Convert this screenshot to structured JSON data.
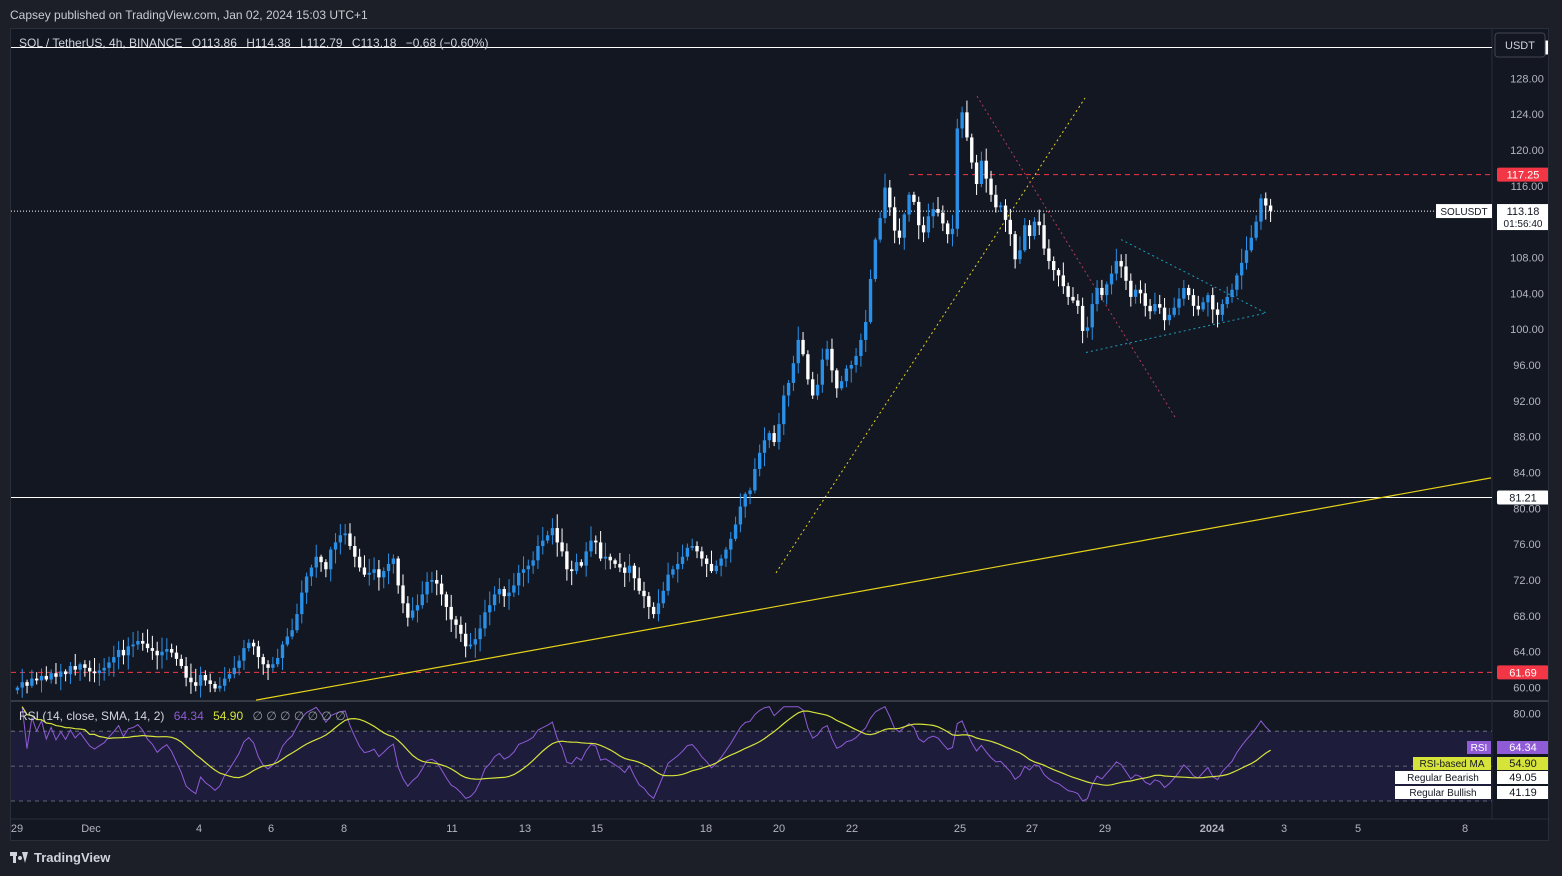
{
  "publish_line": "Capsey published on TradingView.com, Jan 02, 2024 15:03 UTC+1",
  "footer_brand": "TradingView",
  "currency_label": "USDT",
  "legend": {
    "symbol": "SOL / TetherUS, 4h, BINANCE",
    "o_label": "O",
    "o": "113.86",
    "h_label": "H",
    "h": "114.38",
    "l_label": "L",
    "l": "112.79",
    "c_label": "C",
    "c": "113.18",
    "change": "−0.68 (−0.60%)"
  },
  "rsi_legend": {
    "name": "RSI (14, close, SMA, 14, 2)",
    "rsi": "64.34",
    "ma": "54.90",
    "placeholders": "∅ ∅ ∅ ∅ ∅ ∅ ∅"
  },
  "colors": {
    "bg": "#131722",
    "up": "#2a8fe6",
    "down": "#ffffff",
    "red_line": "#f23645",
    "trend": "#e7d21a",
    "rsi": "#8f5bd6",
    "rsi_ma": "#d6e43a",
    "rsi_fill": "#1d1c3b",
    "channel": "#1d9db8"
  },
  "chart_data": [
    {
      "type": "candlestick",
      "y_axis": {
        "ticks": [
          "60.00",
          "64.00",
          "68.00",
          "72.00",
          "76.00",
          "80.00",
          "84.00",
          "88.00",
          "92.00",
          "96.00",
          "100.00",
          "104.00",
          "108.00",
          "112.00",
          "116.00",
          "120.00",
          "124.00",
          "128.00"
        ],
        "range": [
          58.5,
          133.5
        ]
      },
      "x_axis": {
        "ticks": [
          "29",
          "Dec",
          "4",
          "6",
          "8",
          "11",
          "13",
          "15",
          "18",
          "20",
          "22",
          "25",
          "27",
          "29",
          "2024",
          "3",
          "5",
          "8"
        ]
      },
      "close_series": [
        60.0,
        60.6,
        60.2,
        61.0,
        60.8,
        61.3,
        60.9,
        61.6,
        61.2,
        61.8,
        61.5,
        62.4,
        62.0,
        62.6,
        62.2,
        61.8,
        61.6,
        61.9,
        62.2,
        62.8,
        63.4,
        64.2,
        63.6,
        64.6,
        64.8,
        65.2,
        64.9,
        64.4,
        64.1,
        63.6,
        64.0,
        64.3,
        63.9,
        63.2,
        62.4,
        61.1,
        60.6,
        60.2,
        61.4,
        60.8,
        60.4,
        59.9,
        60.2,
        61.0,
        61.5,
        62.2,
        63.0,
        64.4,
        65.0,
        64.6,
        63.4,
        62.6,
        62.2,
        62.6,
        63.3,
        64.8,
        65.7,
        66.4,
        68.2,
        70.6,
        72.4,
        73.4,
        74.6,
        74.0,
        73.2,
        75.4,
        76.2,
        77.0,
        77.2,
        75.8,
        74.6,
        73.4,
        72.6,
        72.8,
        73.2,
        72.3,
        73.0,
        73.8,
        74.4,
        71.4,
        69.4,
        67.8,
        68.6,
        69.2,
        70.4,
        71.8,
        72.0,
        71.6,
        70.4,
        69.0,
        67.6,
        67.0,
        66.0,
        64.6,
        64.8,
        65.4,
        66.6,
        68.4,
        69.2,
        70.4,
        71.0,
        70.2,
        70.6,
        71.4,
        72.8,
        73.2,
        73.6,
        74.2,
        75.8,
        76.4,
        77.0,
        77.8,
        76.2,
        75.2,
        73.2,
        73.0,
        74.0,
        73.6,
        75.2,
        76.4,
        76.2,
        74.4,
        74.6,
        74.2,
        73.8,
        73.4,
        72.8,
        73.6,
        72.2,
        70.8,
        70.2,
        69.0,
        68.2,
        69.4,
        70.8,
        72.6,
        73.2,
        73.8,
        74.6,
        75.6,
        75.8,
        75.2,
        74.4,
        73.8,
        73.0,
        73.6,
        74.4,
        75.4,
        76.6,
        78.2,
        80.2,
        81.6,
        82.0,
        84.4,
        86.2,
        87.6,
        88.4,
        87.4,
        89.4,
        92.6,
        94.0,
        96.2,
        98.8,
        97.2,
        94.4,
        92.6,
        93.8,
        96.6,
        97.8,
        95.4,
        93.4,
        94.2,
        95.6,
        96.0,
        97.0,
        98.8,
        100.8,
        105.6,
        110.0,
        112.4,
        115.8,
        113.6,
        111.0,
        110.2,
        112.8,
        115.0,
        114.2,
        111.6,
        110.8,
        112.6,
        113.4,
        113.0,
        111.8,
        110.6,
        111.2,
        122.4,
        124.2,
        121.4,
        118.6,
        116.2,
        118.8,
        116.8,
        115.0,
        113.6,
        113.8,
        112.2,
        110.6,
        107.8,
        108.8,
        111.6,
        110.4,
        112.0,
        111.6,
        109.0,
        107.6,
        106.6,
        106.0,
        104.8,
        103.6,
        103.2,
        102.6,
        99.8,
        100.2,
        102.8,
        104.6,
        103.8,
        105.0,
        106.2,
        107.6,
        107.0,
        105.4,
        103.6,
        104.4,
        104.0,
        102.6,
        102.0,
        102.8,
        102.4,
        101.0,
        101.6,
        102.4,
        103.4,
        104.6,
        103.8,
        102.6,
        102.2,
        103.0,
        103.8,
        102.2,
        101.6,
        102.8,
        103.6,
        104.4,
        106.0,
        107.4,
        108.8,
        110.2,
        112.0,
        114.6,
        113.8,
        113.2
      ],
      "levels": [
        {
          "label": "131.44",
          "value": 131.44,
          "style": "solid",
          "color": "#ffffff"
        },
        {
          "label": "117.25",
          "value": 117.25,
          "style": "dashed",
          "color": "#f23645"
        },
        {
          "label": "81.21",
          "value": 81.21,
          "style": "solid",
          "color": "#ffffff"
        },
        {
          "label": "61.69",
          "value": 61.69,
          "style": "dashed",
          "color": "#f23645"
        }
      ],
      "last_price": {
        "label": "SOLUSDT",
        "value": "113.18",
        "countdown": "01:56:40"
      }
    },
    {
      "type": "line",
      "title": "RSI (14, close, SMA, 14, 2)",
      "y_axis": {
        "ticks": [
          "80.00"
        ],
        "range": [
          22,
          85
        ],
        "bands": [
          70,
          50,
          30
        ]
      },
      "series": [
        {
          "name": "RSI",
          "last": "64.34"
        },
        {
          "name": "RSI-based MA",
          "last": "54.90"
        }
      ],
      "labels": [
        {
          "name": "Regular Bearish",
          "value": "49.05"
        },
        {
          "name": "Regular Bullish",
          "value": "41.19"
        }
      ]
    }
  ]
}
